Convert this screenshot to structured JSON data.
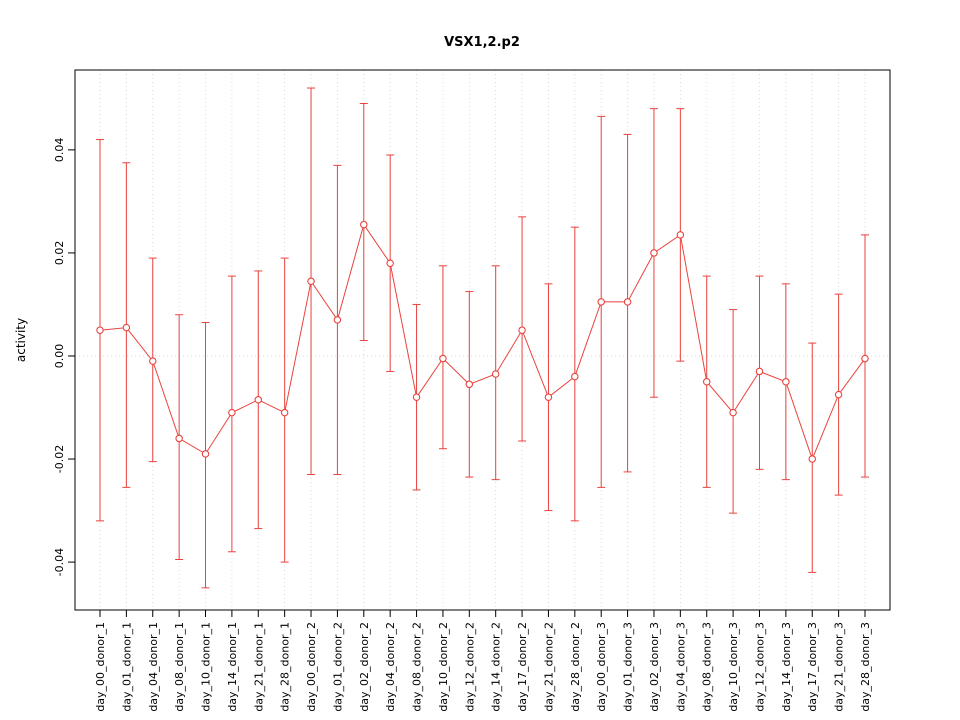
{
  "figure": {
    "title": "VSX1,2.p2"
  },
  "chart_data": {
    "type": "scatter",
    "title": "VSX1,2.p2",
    "xlabel": "",
    "ylabel": "activity",
    "ylim": [
      -0.0493,
      0.0555
    ],
    "yticks": [
      -0.04,
      -0.02,
      0,
      0.02,
      0.04
    ],
    "ytick_labels": [
      "-0.04",
      "-0.02",
      "0.00",
      "0.02",
      "0.04"
    ],
    "grid": "dotted vertical line at each category, dotted horizontal line at y=0",
    "legend": "none",
    "point_style": "open-circle",
    "color": "#e8433e",
    "grid_color": "#d9d9d9",
    "categories": [
      "day_00_donor_1",
      "day_01_donor_1",
      "day_04_donor_1",
      "day_08_donor_1",
      "day_10_donor_1",
      "day_14_donor_1",
      "day_21_donor_1",
      "day_28_donor_1",
      "day_00_donor_2",
      "day_01_donor_2",
      "day_02_donor_2",
      "day_04_donor_2",
      "day_08_donor_2",
      "day_10_donor_2",
      "day_12_donor_2",
      "day_14_donor_2",
      "day_17_donor_2",
      "day_21_donor_2",
      "day_28_donor_2",
      "day_00_donor_3",
      "day_01_donor_3",
      "day_02_donor_3",
      "day_04_donor_3",
      "day_08_donor_3",
      "day_10_donor_3",
      "day_12_donor_3",
      "day_14_donor_3",
      "day_17_donor_3",
      "day_21_donor_3",
      "day_28_donor_3"
    ],
    "series": [
      {
        "name": "activity",
        "values": [
          0.005,
          0.0055,
          -0.001,
          -0.016,
          -0.019,
          -0.011,
          -0.0085,
          -0.011,
          0.0145,
          0.007,
          0.0255,
          0.018,
          -0.008,
          -0.0005,
          -0.0055,
          -0.0035,
          0.005,
          -0.008,
          -0.004,
          0.0105,
          0.0105,
          0.02,
          0.0235,
          -0.005,
          -0.011,
          -0.003,
          -0.005,
          -0.02,
          -0.0075,
          -0.0005
        ],
        "lower": [
          -0.032,
          -0.0255,
          -0.0205,
          -0.0395,
          -0.045,
          -0.038,
          -0.0335,
          -0.04,
          -0.023,
          -0.023,
          0.003,
          -0.003,
          -0.026,
          -0.018,
          -0.0235,
          -0.024,
          -0.0165,
          -0.03,
          -0.032,
          -0.0255,
          -0.0225,
          -0.008,
          -0.001,
          -0.0255,
          -0.0305,
          -0.022,
          -0.024,
          -0.042,
          -0.027,
          -0.0235
        ],
        "upper": [
          0.042,
          0.0375,
          0.019,
          0.008,
          0.0065,
          0.0155,
          0.0165,
          0.019,
          0.052,
          0.037,
          0.049,
          0.039,
          0.01,
          0.0175,
          0.0125,
          0.0175,
          0.027,
          0.014,
          0.025,
          0.0465,
          0.043,
          0.048,
          0.048,
          0.0155,
          0.009,
          0.0155,
          0.014,
          0.0025,
          0.012,
          0.0235
        ]
      }
    ]
  }
}
